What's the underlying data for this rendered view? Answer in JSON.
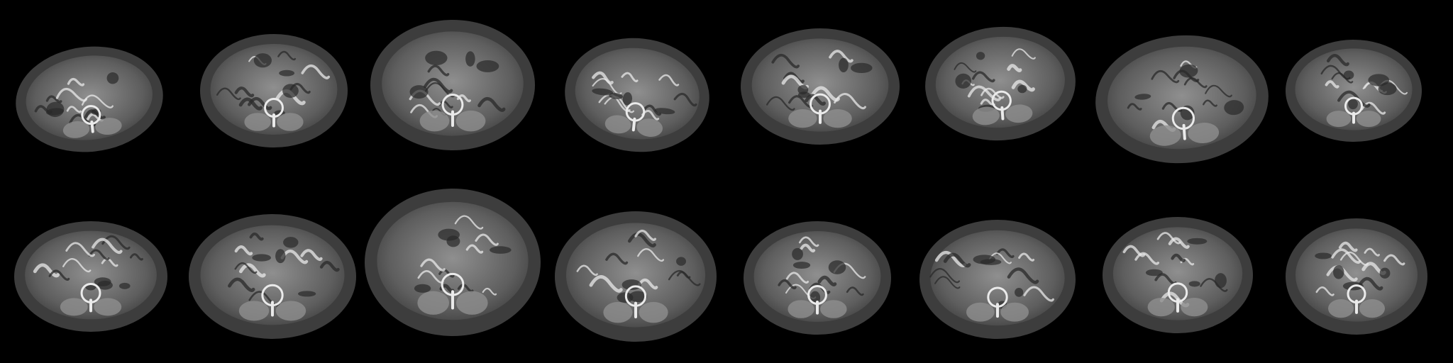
{
  "image": {
    "description_free": true,
    "background_color": "#000000",
    "grid": {
      "rows": 2,
      "columns": 8,
      "tile_count": 16
    },
    "palette": {
      "body": "#5e5e5e",
      "rim": "#3d3d3d",
      "organ": "#8f8f8f",
      "highlight": "#eaeaea",
      "cavity": "#2a2a2a"
    },
    "slices": [
      {
        "id": "r1c1"
      },
      {
        "id": "r1c2"
      },
      {
        "id": "r1c3"
      },
      {
        "id": "r1c4"
      },
      {
        "id": "r1c5"
      },
      {
        "id": "r1c6"
      },
      {
        "id": "r1c7"
      },
      {
        "id": "r1c8"
      },
      {
        "id": "r2c1"
      },
      {
        "id": "r2c2"
      },
      {
        "id": "r2c3"
      },
      {
        "id": "r2c4"
      },
      {
        "id": "r2c5"
      },
      {
        "id": "r2c6"
      },
      {
        "id": "r2c7"
      },
      {
        "id": "r2c8"
      }
    ]
  }
}
